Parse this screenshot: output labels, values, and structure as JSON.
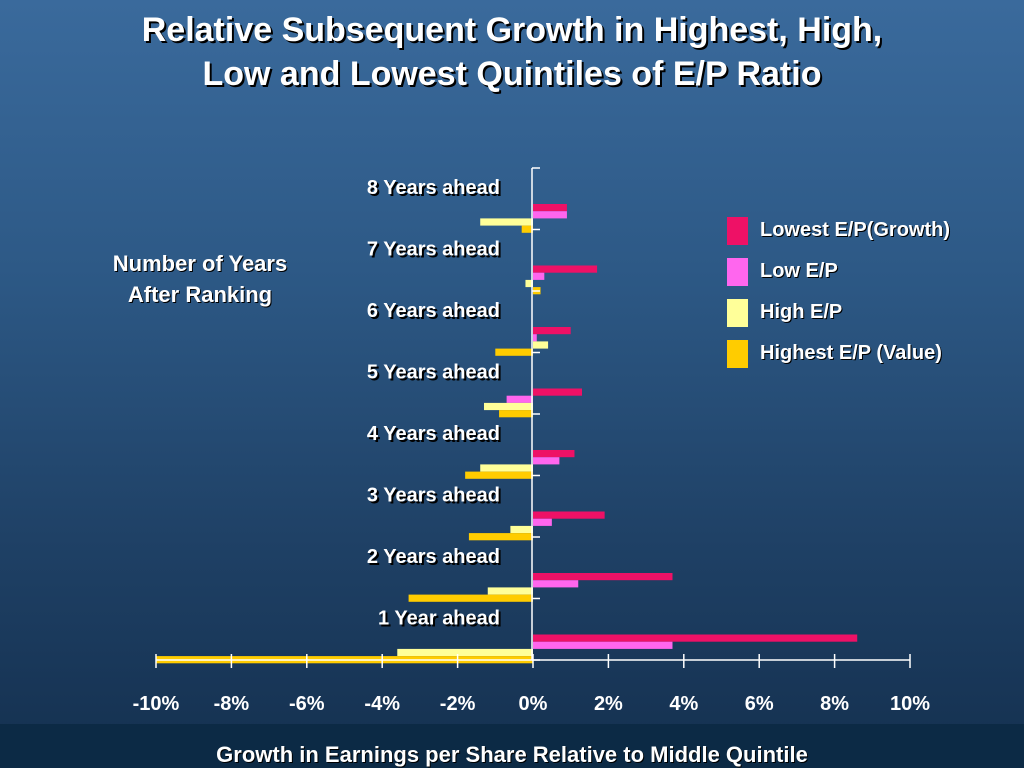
{
  "title_lines": [
    "Relative Subsequent Growth in Highest, High,",
    "Low and Lowest Quintiles of E/P Ratio"
  ],
  "side_label_lines": [
    "Number of Years",
    "After Ranking"
  ],
  "colors": {
    "lowest": "#ee1166",
    "low": "#ff66ee",
    "high": "#ffff99",
    "highest": "#ffcc00"
  },
  "chart_data": {
    "type": "bar",
    "orientation": "horizontal",
    "title": "Relative Subsequent Growth in Highest, High, Low and Lowest Quintiles of E/P Ratio",
    "xlabel": "Growth in Earnings per Share Relative to Middle Quintile",
    "ylabel": "Number of Years After Ranking",
    "xlim": [
      -10,
      10
    ],
    "x_ticks": [
      "-10%",
      "-8%",
      "-6%",
      "-4%",
      "-2%",
      "0%",
      "2%",
      "4%",
      "6%",
      "8%",
      "10%"
    ],
    "categories": [
      "8 Years ahead",
      "7 Years ahead",
      "6 Years ahead",
      "5 Years ahead",
      "4 Years ahead",
      "3 Years ahead",
      "2 Years ahead",
      "1 Year ahead"
    ],
    "series": [
      {
        "name": "Lowest E/P(Growth)",
        "color": "#ee1166",
        "values": [
          0.9,
          1.7,
          1.0,
          1.3,
          1.1,
          1.9,
          3.7,
          8.6
        ]
      },
      {
        "name": "Low E/P",
        "color": "#ff66ee",
        "values": [
          0.9,
          0.3,
          0.1,
          -0.7,
          0.7,
          0.5,
          1.2,
          3.7
        ]
      },
      {
        "name": "High E/P",
        "color": "#ffff99",
        "values": [
          -1.4,
          -0.2,
          0.4,
          -1.3,
          -1.4,
          -0.6,
          -1.2,
          -3.6
        ]
      },
      {
        "name": "Highest E/P (Value)",
        "color": "#ffcc00",
        "values": [
          -0.3,
          0.2,
          -1.0,
          -0.9,
          -1.8,
          -1.7,
          -3.3,
          -10.0
        ]
      }
    ],
    "legend_position": "right",
    "grid": false
  }
}
